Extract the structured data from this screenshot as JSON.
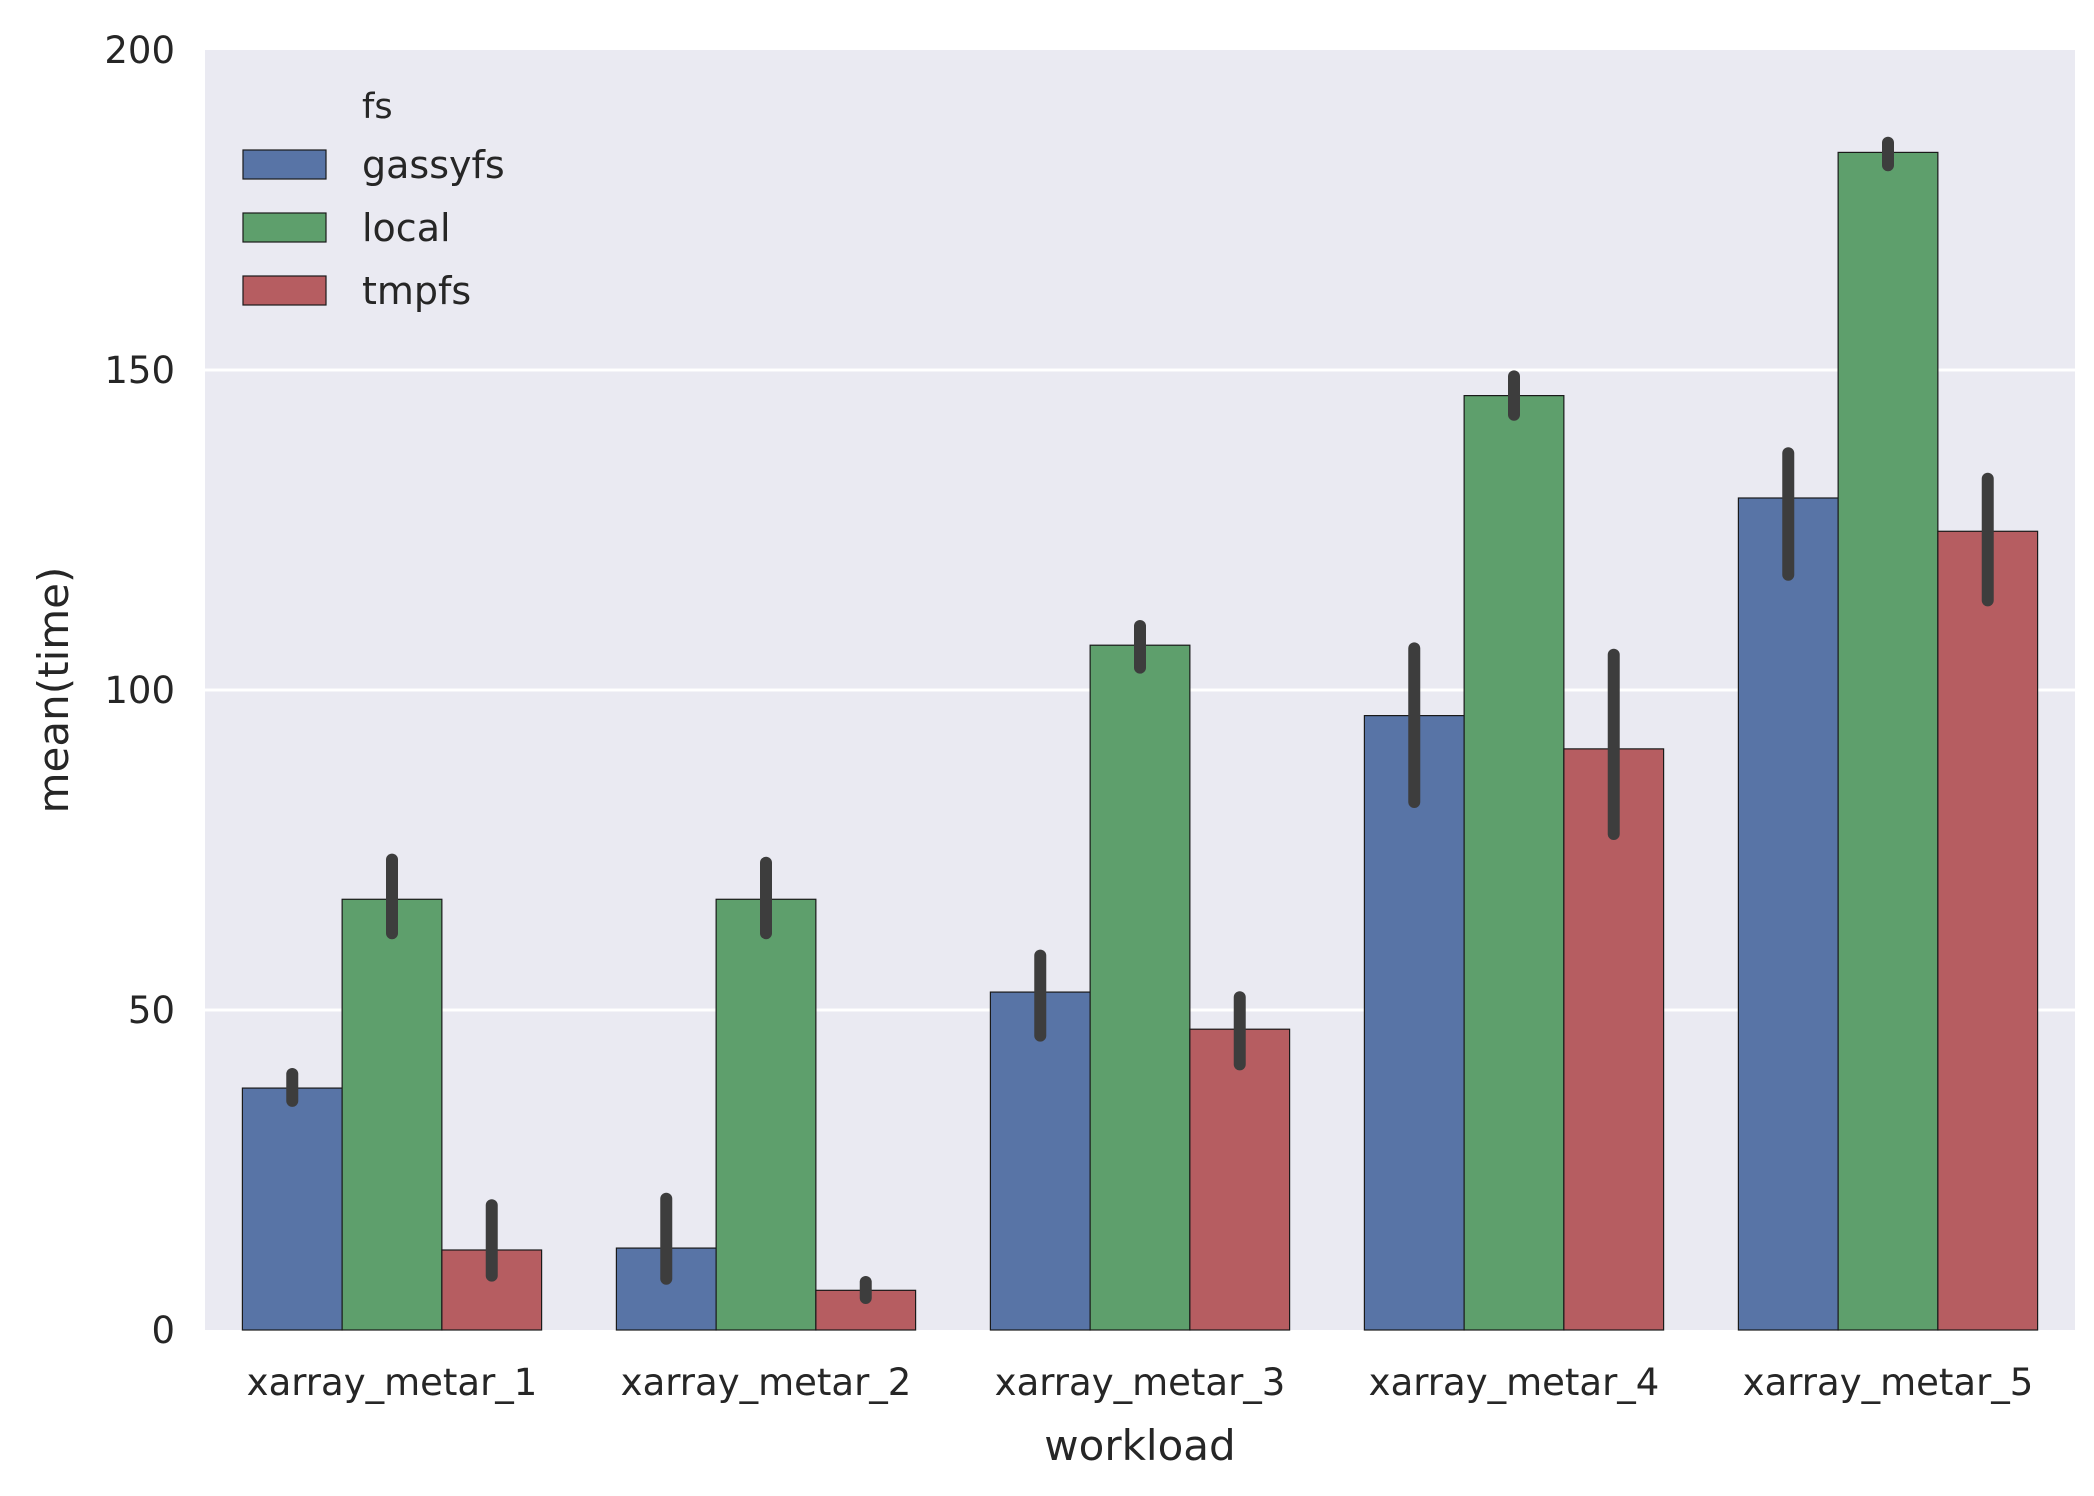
{
  "chart_data": {
    "type": "bar",
    "title": "",
    "xlabel": "workload",
    "ylabel": "mean(time)",
    "ylim": [
      0,
      200
    ],
    "yticks": [
      0,
      50,
      100,
      150,
      200
    ],
    "grid": true,
    "legend": {
      "title": "fs",
      "placement": "top-left"
    },
    "categories": [
      "xarray_metar_1",
      "xarray_metar_2",
      "xarray_metar_3",
      "xarray_metar_4",
      "xarray_metar_5"
    ],
    "series": [
      {
        "name": "gassyfs",
        "color": "#5874a6",
        "values": [
          37.8,
          12.8,
          52.8,
          96.0,
          130.0
        ],
        "ci": [
          [
            35.8,
            40.0
          ],
          [
            8.0,
            20.5
          ],
          [
            46.0,
            58.5
          ],
          [
            82.5,
            106.5
          ],
          [
            118.0,
            137.0
          ]
        ]
      },
      {
        "name": "local",
        "color": "#5e9f6c",
        "values": [
          67.3,
          67.3,
          107.0,
          146.0,
          184.0
        ],
        "ci": [
          [
            62.0,
            73.5
          ],
          [
            62.0,
            73.0
          ],
          [
            103.5,
            110.0
          ],
          [
            143.0,
            149.0
          ],
          [
            182.0,
            185.5
          ]
        ]
      },
      {
        "name": "tmpfs",
        "color": "#b65d61",
        "values": [
          12.5,
          6.2,
          47.0,
          90.8,
          124.8
        ],
        "ci": [
          [
            8.5,
            19.5
          ],
          [
            5.0,
            7.5
          ],
          [
            41.5,
            52.0
          ],
          [
            77.5,
            105.5
          ],
          [
            114.0,
            133.0
          ]
        ]
      }
    ],
    "colors": {
      "plot_background": "#eaeaf2",
      "grid": "#ffffff",
      "errorbar": "#3d3d3d"
    }
  }
}
